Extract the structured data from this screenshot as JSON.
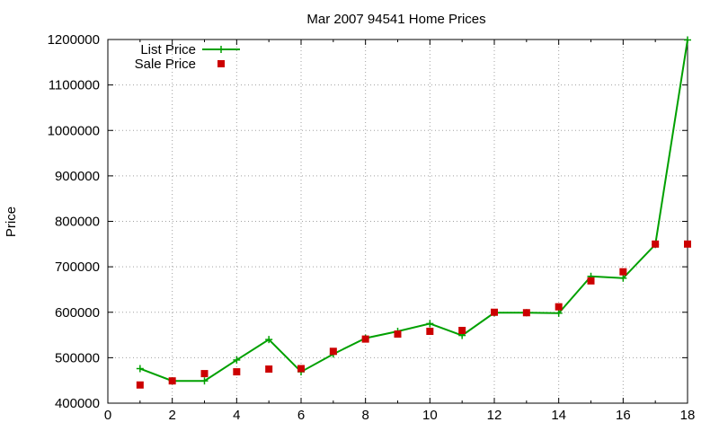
{
  "chart_data": {
    "type": "line",
    "title": "Mar 2007 94541 Home Prices",
    "xlabel": "",
    "ylabel": "Price",
    "xlim": [
      0,
      18
    ],
    "ylim": [
      400000,
      1200000
    ],
    "x_ticks": [
      "0",
      "2",
      "4",
      "6",
      "8",
      "10",
      "12",
      "14",
      "16",
      "18"
    ],
    "y_ticks": [
      "400000",
      "500000",
      "600000",
      "700000",
      "800000",
      "900000",
      "1000000",
      "1100000",
      "1200000"
    ],
    "grid": true,
    "legend_position": "top-left",
    "series": [
      {
        "name": "List Price",
        "style": "lines+points",
        "color": "#00a000",
        "marker": "plus",
        "x": [
          1,
          2,
          3,
          4,
          5,
          6,
          7,
          8,
          9,
          10,
          11,
          12,
          13,
          14,
          15,
          16,
          17,
          18
        ],
        "y": [
          476000,
          449000,
          449000,
          495000,
          540000,
          469000,
          508000,
          543000,
          558000,
          575000,
          549000,
          599000,
          599000,
          598000,
          679000,
          675000,
          749000,
          1199000
        ]
      },
      {
        "name": "Sale Price",
        "style": "points",
        "color": "#cc0000",
        "marker": "square",
        "x": [
          1,
          2,
          3,
          4,
          5,
          6,
          7,
          8,
          9,
          10,
          11,
          12,
          13,
          14,
          15,
          16,
          17,
          18
        ],
        "y": [
          440000,
          449000,
          465000,
          469000,
          475000,
          476000,
          514000,
          541000,
          552000,
          558000,
          560000,
          600000,
          599000,
          612000,
          669000,
          689000,
          750000,
          750000
        ]
      }
    ]
  }
}
